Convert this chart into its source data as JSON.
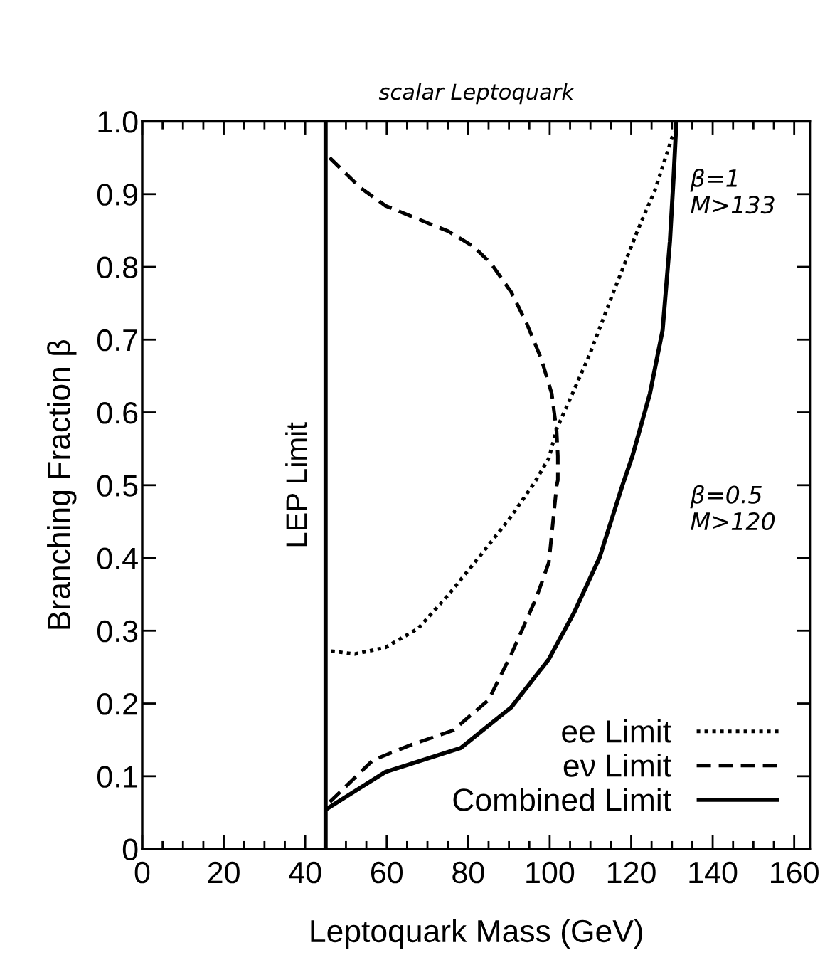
{
  "chart_data": {
    "type": "line",
    "title": "scalar Leptoquark",
    "xlabel": "Leptoquark Mass (GeV)",
    "ylabel": "Branching Fraction β",
    "xlim": [
      0,
      164
    ],
    "xticks": [
      0,
      20,
      40,
      60,
      80,
      100,
      120,
      140,
      160
    ],
    "ylim": [
      0,
      1.0
    ],
    "yticks": [
      0,
      0.1,
      0.2,
      0.3,
      0.4,
      0.5,
      0.6,
      0.7,
      0.8,
      0.9,
      {
        "value": 1.0,
        "label": "1.0"
      }
    ],
    "grid": false,
    "legend": "bottom right",
    "marker": "none",
    "series": [
      {
        "name": "ee Limit",
        "color": "#000000",
        "line_style": "dotted",
        "x": [
          46.4,
          52.2,
          59.7,
          67.7,
          75.1,
          82.5,
          90.0,
          96.1,
          99.8,
          101.7,
          109.7,
          115.2,
          121.5,
          125.8,
          130.1,
          130.7
        ],
        "values": [
          0.272,
          0.268,
          0.277,
          0.303,
          0.349,
          0.4,
          0.453,
          0.502,
          0.537,
          0.577,
          0.678,
          0.759,
          0.849,
          0.905,
          0.979,
          0.985
        ]
      },
      {
        "name": "eν Limit",
        "color": "#000000",
        "line_style": "dashed",
        "x": [
          46.0,
          53.5,
          59.7,
          67.1,
          75.1,
          81.3,
          85.7,
          90.6,
          94.3,
          97.9,
          100.5,
          101.7,
          102.0,
          102.0,
          101.7,
          99.8,
          96.7,
          90.6,
          85.0,
          76.3,
          65.9,
          56.6,
          45.0
        ],
        "values": [
          0.95,
          0.909,
          0.884,
          0.867,
          0.849,
          0.828,
          0.804,
          0.765,
          0.723,
          0.674,
          0.626,
          0.574,
          0.54,
          0.507,
          0.499,
          0.394,
          0.345,
          0.268,
          0.205,
          0.163,
          0.143,
          0.122,
          0.059
        ]
      },
      {
        "name": "Combined Limit",
        "color": "#000000",
        "line_style": "solid",
        "x": [
          45.0,
          59.7,
          78.2,
          90.6,
          99.8,
          106.0,
          112.2,
          117.8,
          120.3,
          124.6,
          127.7,
          129.5,
          130.4,
          131.0,
          131.1
        ],
        "values": [
          0.054,
          0.106,
          0.139,
          0.195,
          0.261,
          0.325,
          0.4,
          0.499,
          0.54,
          0.626,
          0.713,
          0.835,
          0.923,
          0.99,
          1.0
        ]
      }
    ],
    "ref_lines": [
      {
        "axis": "x",
        "value": 45,
        "label": "LEP Limit",
        "color": "#000000",
        "line_style": "solid"
      }
    ],
    "annotations": [
      "β=1\nM>133",
      "β=0.5\nM>120"
    ]
  }
}
